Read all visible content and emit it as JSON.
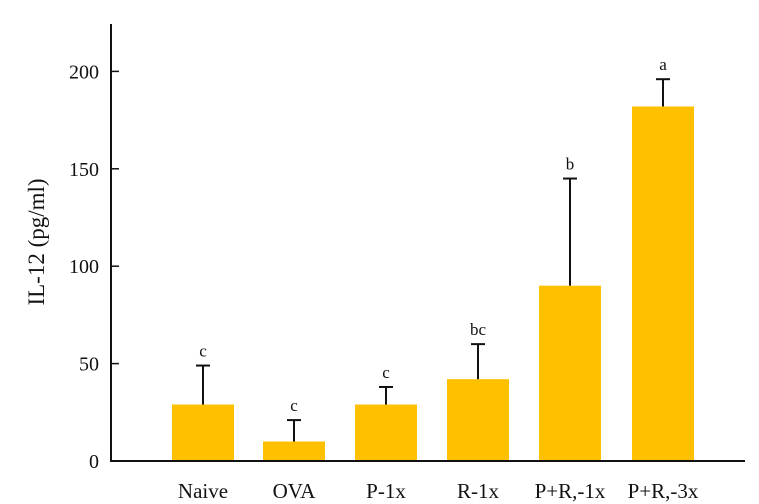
{
  "chart_data": {
    "type": "bar",
    "title": "",
    "xlabel": "",
    "ylabel": "IL-12 (pg/ml)",
    "ylim": [
      0,
      225
    ],
    "yticks": [
      0,
      50,
      100,
      150,
      200
    ],
    "categories": [
      "Naive",
      "OVA",
      "P-1x",
      "R-1x",
      "P+R,-1x",
      "P+R,-3x"
    ],
    "values": [
      29,
      10,
      29,
      42,
      90,
      182
    ],
    "error_upper": [
      20,
      11,
      9,
      18,
      55,
      14
    ],
    "significance": [
      "c",
      "c",
      "c",
      "bc",
      "b",
      "a"
    ],
    "bar_color": "#FFC000",
    "error_bar_color": "#111111",
    "grid": false,
    "legend": "none"
  }
}
